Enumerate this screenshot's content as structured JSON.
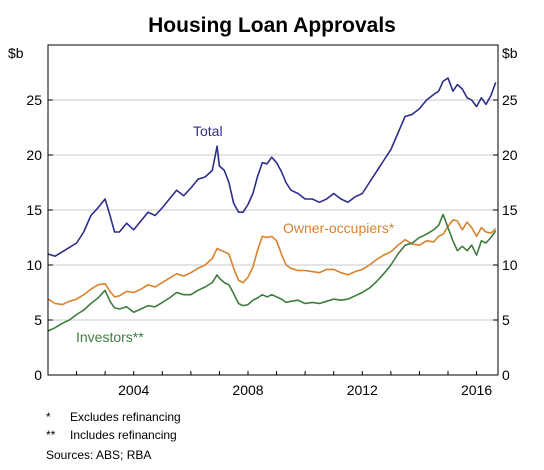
{
  "chart_data": {
    "type": "line",
    "title": "Housing Loan Approvals",
    "ylabel_left": "$b",
    "ylabel_right": "$b",
    "xlim": [
      2001.0,
      2016.75
    ],
    "ylim": [
      0,
      30
    ],
    "x_ticks": [
      2004,
      2008,
      2012,
      2016
    ],
    "x_tick_labels": [
      "2004",
      "2008",
      "2012",
      "2016"
    ],
    "y_ticks": [
      0,
      5,
      10,
      15,
      20,
      25
    ],
    "y_tick_labels": [
      "0",
      "5",
      "10",
      "15",
      "20",
      "25"
    ],
    "grid": true,
    "series": [
      {
        "name": "Total",
        "color": "#2e2e8a",
        "x": [
          2001.0,
          2001.25,
          2001.5,
          2001.75,
          2002.0,
          2002.25,
          2002.5,
          2002.75,
          2003.0,
          2003.17,
          2003.33,
          2003.5,
          2003.75,
          2004.0,
          2004.25,
          2004.5,
          2004.75,
          2005.0,
          2005.25,
          2005.5,
          2005.75,
          2006.0,
          2006.25,
          2006.5,
          2006.75,
          2006.92,
          2007.0,
          2007.17,
          2007.33,
          2007.5,
          2007.67,
          2007.83,
          2008.0,
          2008.17,
          2008.33,
          2008.5,
          2008.67,
          2008.83,
          2009.0,
          2009.17,
          2009.33,
          2009.5,
          2009.75,
          2010.0,
          2010.25,
          2010.5,
          2010.75,
          2011.0,
          2011.25,
          2011.5,
          2011.75,
          2012.0,
          2012.25,
          2012.5,
          2012.75,
          2013.0,
          2013.25,
          2013.5,
          2013.75,
          2014.0,
          2014.25,
          2014.5,
          2014.67,
          2014.83,
          2015.0,
          2015.17,
          2015.33,
          2015.5,
          2015.67,
          2015.83,
          2016.0,
          2016.17,
          2016.33,
          2016.5,
          2016.67
        ],
        "values": [
          11.0,
          10.8,
          11.2,
          11.6,
          12.0,
          13.0,
          14.5,
          15.2,
          16.0,
          14.5,
          13.0,
          13.0,
          13.8,
          13.2,
          14.0,
          14.8,
          14.5,
          15.2,
          16.0,
          16.8,
          16.3,
          17.0,
          17.8,
          18.0,
          18.6,
          20.8,
          19.0,
          18.6,
          17.5,
          15.6,
          14.8,
          14.8,
          15.5,
          16.5,
          18.0,
          19.3,
          19.2,
          19.8,
          19.3,
          18.5,
          17.5,
          16.8,
          16.5,
          16.0,
          16.0,
          15.7,
          16.0,
          16.5,
          16.0,
          15.7,
          16.2,
          16.5,
          17.5,
          18.5,
          19.5,
          20.5,
          22.0,
          23.5,
          23.7,
          24.2,
          25.0,
          25.5,
          25.8,
          26.7,
          27.0,
          25.8,
          26.4,
          26.0,
          25.2,
          25.0,
          24.4,
          25.2,
          24.6,
          25.4,
          26.6
        ]
      },
      {
        "name": "Owner-occupiers*",
        "color": "#d9822b",
        "x": [
          2001.0,
          2001.25,
          2001.5,
          2001.75,
          2002.0,
          2002.25,
          2002.5,
          2002.75,
          2003.0,
          2003.17,
          2003.33,
          2003.5,
          2003.75,
          2004.0,
          2004.25,
          2004.5,
          2004.75,
          2005.0,
          2005.25,
          2005.5,
          2005.75,
          2006.0,
          2006.25,
          2006.5,
          2006.75,
          2006.92,
          2007.0,
          2007.17,
          2007.33,
          2007.5,
          2007.67,
          2007.83,
          2008.0,
          2008.17,
          2008.33,
          2008.5,
          2008.67,
          2008.83,
          2009.0,
          2009.17,
          2009.33,
          2009.5,
          2009.75,
          2010.0,
          2010.25,
          2010.5,
          2010.75,
          2011.0,
          2011.25,
          2011.5,
          2011.75,
          2012.0,
          2012.25,
          2012.5,
          2012.75,
          2013.0,
          2013.25,
          2013.5,
          2013.75,
          2014.0,
          2014.25,
          2014.5,
          2014.67,
          2014.83,
          2015.0,
          2015.17,
          2015.33,
          2015.5,
          2015.67,
          2015.83,
          2016.0,
          2016.17,
          2016.33,
          2016.5,
          2016.67
        ],
        "values": [
          6.9,
          6.5,
          6.4,
          6.7,
          6.9,
          7.3,
          7.8,
          8.2,
          8.3,
          7.6,
          7.1,
          7.2,
          7.6,
          7.5,
          7.8,
          8.2,
          8.0,
          8.4,
          8.8,
          9.2,
          9.0,
          9.3,
          9.7,
          10.0,
          10.6,
          11.5,
          11.4,
          11.2,
          11.0,
          9.7,
          8.6,
          8.4,
          8.9,
          9.8,
          11.3,
          12.6,
          12.5,
          12.6,
          12.2,
          11.0,
          10.0,
          9.7,
          9.5,
          9.5,
          9.4,
          9.3,
          9.6,
          9.6,
          9.3,
          9.1,
          9.4,
          9.6,
          10.0,
          10.5,
          10.9,
          11.2,
          11.8,
          12.3,
          11.9,
          11.8,
          12.2,
          12.1,
          12.6,
          12.8,
          13.5,
          14.1,
          14.0,
          13.2,
          13.9,
          13.4,
          12.6,
          13.4,
          13.0,
          12.9,
          13.3
        ]
      },
      {
        "name": "Investors**",
        "color": "#3e7d3e",
        "x": [
          2001.0,
          2001.25,
          2001.5,
          2001.75,
          2002.0,
          2002.25,
          2002.5,
          2002.75,
          2003.0,
          2003.17,
          2003.33,
          2003.5,
          2003.75,
          2004.0,
          2004.25,
          2004.5,
          2004.75,
          2005.0,
          2005.25,
          2005.5,
          2005.75,
          2006.0,
          2006.25,
          2006.5,
          2006.75,
          2006.92,
          2007.0,
          2007.17,
          2007.33,
          2007.5,
          2007.67,
          2007.83,
          2008.0,
          2008.17,
          2008.33,
          2008.5,
          2008.67,
          2008.83,
          2009.0,
          2009.17,
          2009.33,
          2009.5,
          2009.75,
          2010.0,
          2010.25,
          2010.5,
          2010.75,
          2011.0,
          2011.25,
          2011.5,
          2011.75,
          2012.0,
          2012.25,
          2012.5,
          2012.75,
          2013.0,
          2013.25,
          2013.5,
          2013.75,
          2014.0,
          2014.25,
          2014.5,
          2014.67,
          2014.83,
          2015.0,
          2015.17,
          2015.33,
          2015.5,
          2015.67,
          2015.83,
          2016.0,
          2016.17,
          2016.33,
          2016.5,
          2016.67
        ],
        "values": [
          4.0,
          4.3,
          4.7,
          5.0,
          5.5,
          5.9,
          6.5,
          7.0,
          7.7,
          6.7,
          6.1,
          6.0,
          6.2,
          5.7,
          6.0,
          6.3,
          6.2,
          6.6,
          7.0,
          7.5,
          7.3,
          7.3,
          7.7,
          8.0,
          8.4,
          9.1,
          8.8,
          8.4,
          8.2,
          7.4,
          6.5,
          6.3,
          6.4,
          6.8,
          7.0,
          7.3,
          7.1,
          7.3,
          7.1,
          6.9,
          6.6,
          6.7,
          6.8,
          6.5,
          6.6,
          6.5,
          6.7,
          6.9,
          6.8,
          6.9,
          7.2,
          7.5,
          7.9,
          8.5,
          9.2,
          10.0,
          11.0,
          11.8,
          12.0,
          12.5,
          12.8,
          13.2,
          13.6,
          14.6,
          13.4,
          12.2,
          11.3,
          11.7,
          11.3,
          11.8,
          10.9,
          12.2,
          12.0,
          12.5,
          13.1
        ]
      }
    ],
    "series_labels": [
      {
        "text": "Total",
        "series": 0
      },
      {
        "text": "Owner-occupiers*",
        "series": 1
      },
      {
        "text": "Investors**",
        "series": 2
      }
    ]
  },
  "footnotes": [
    {
      "mark": "*",
      "text": "Excludes refinancing"
    },
    {
      "mark": "**",
      "text": "Includes refinancing"
    }
  ],
  "sources": "Sources:  ABS; RBA"
}
